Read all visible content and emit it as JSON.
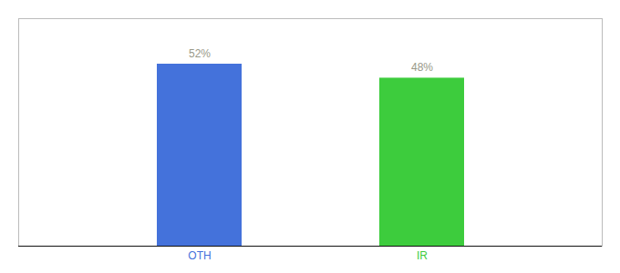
{
  "chart_data": {
    "type": "bar",
    "categories": [
      "OTH",
      "IR"
    ],
    "values": [
      52,
      48
    ],
    "value_labels": [
      "52%",
      "48%"
    ],
    "colors": [
      "#4472db",
      "#3dcc3d"
    ],
    "ylim": [
      0,
      65
    ],
    "data_labels": true,
    "tick_labels": "x"
  }
}
